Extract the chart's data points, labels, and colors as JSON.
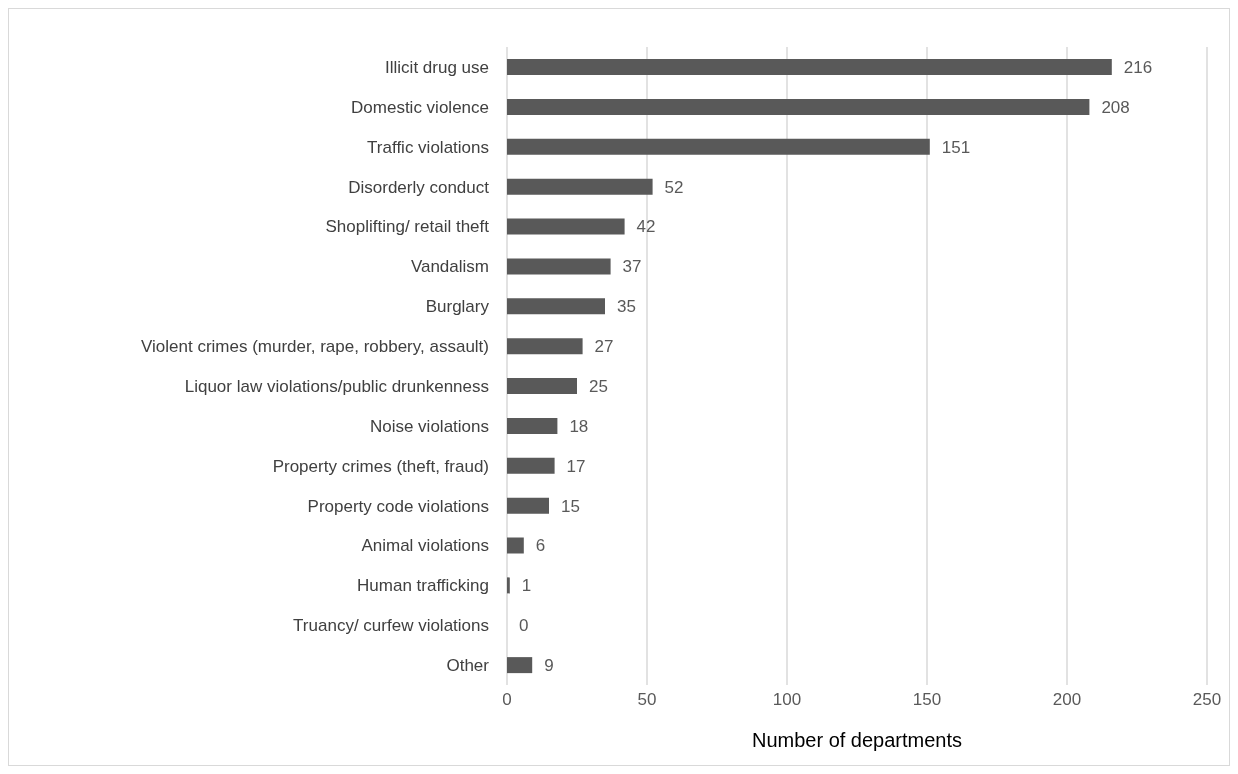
{
  "chart_data": {
    "type": "bar",
    "orientation": "horizontal",
    "xlabel": "Number of departments",
    "categories": [
      "Illicit drug use",
      "Domestic violence",
      "Traffic violations",
      "Disorderly conduct",
      "Shoplifting/ retail theft",
      "Vandalism",
      "Burglary",
      "Violent crimes (murder, rape, robbery, assault)",
      "Liquor law violations/public drunkenness",
      "Noise violations",
      "Property crimes (theft, fraud)",
      "Property code violations",
      "Animal violations",
      "Human trafficking",
      "Truancy/ curfew violations",
      "Other"
    ],
    "values": [
      216,
      208,
      151,
      52,
      42,
      37,
      35,
      27,
      25,
      18,
      17,
      15,
      6,
      1,
      0,
      9
    ],
    "color": "#595959",
    "xlim": [
      0,
      250
    ],
    "xticks": [
      0,
      50,
      100,
      150,
      200,
      250
    ],
    "grid": "x",
    "data_labels": true,
    "legend": false
  }
}
